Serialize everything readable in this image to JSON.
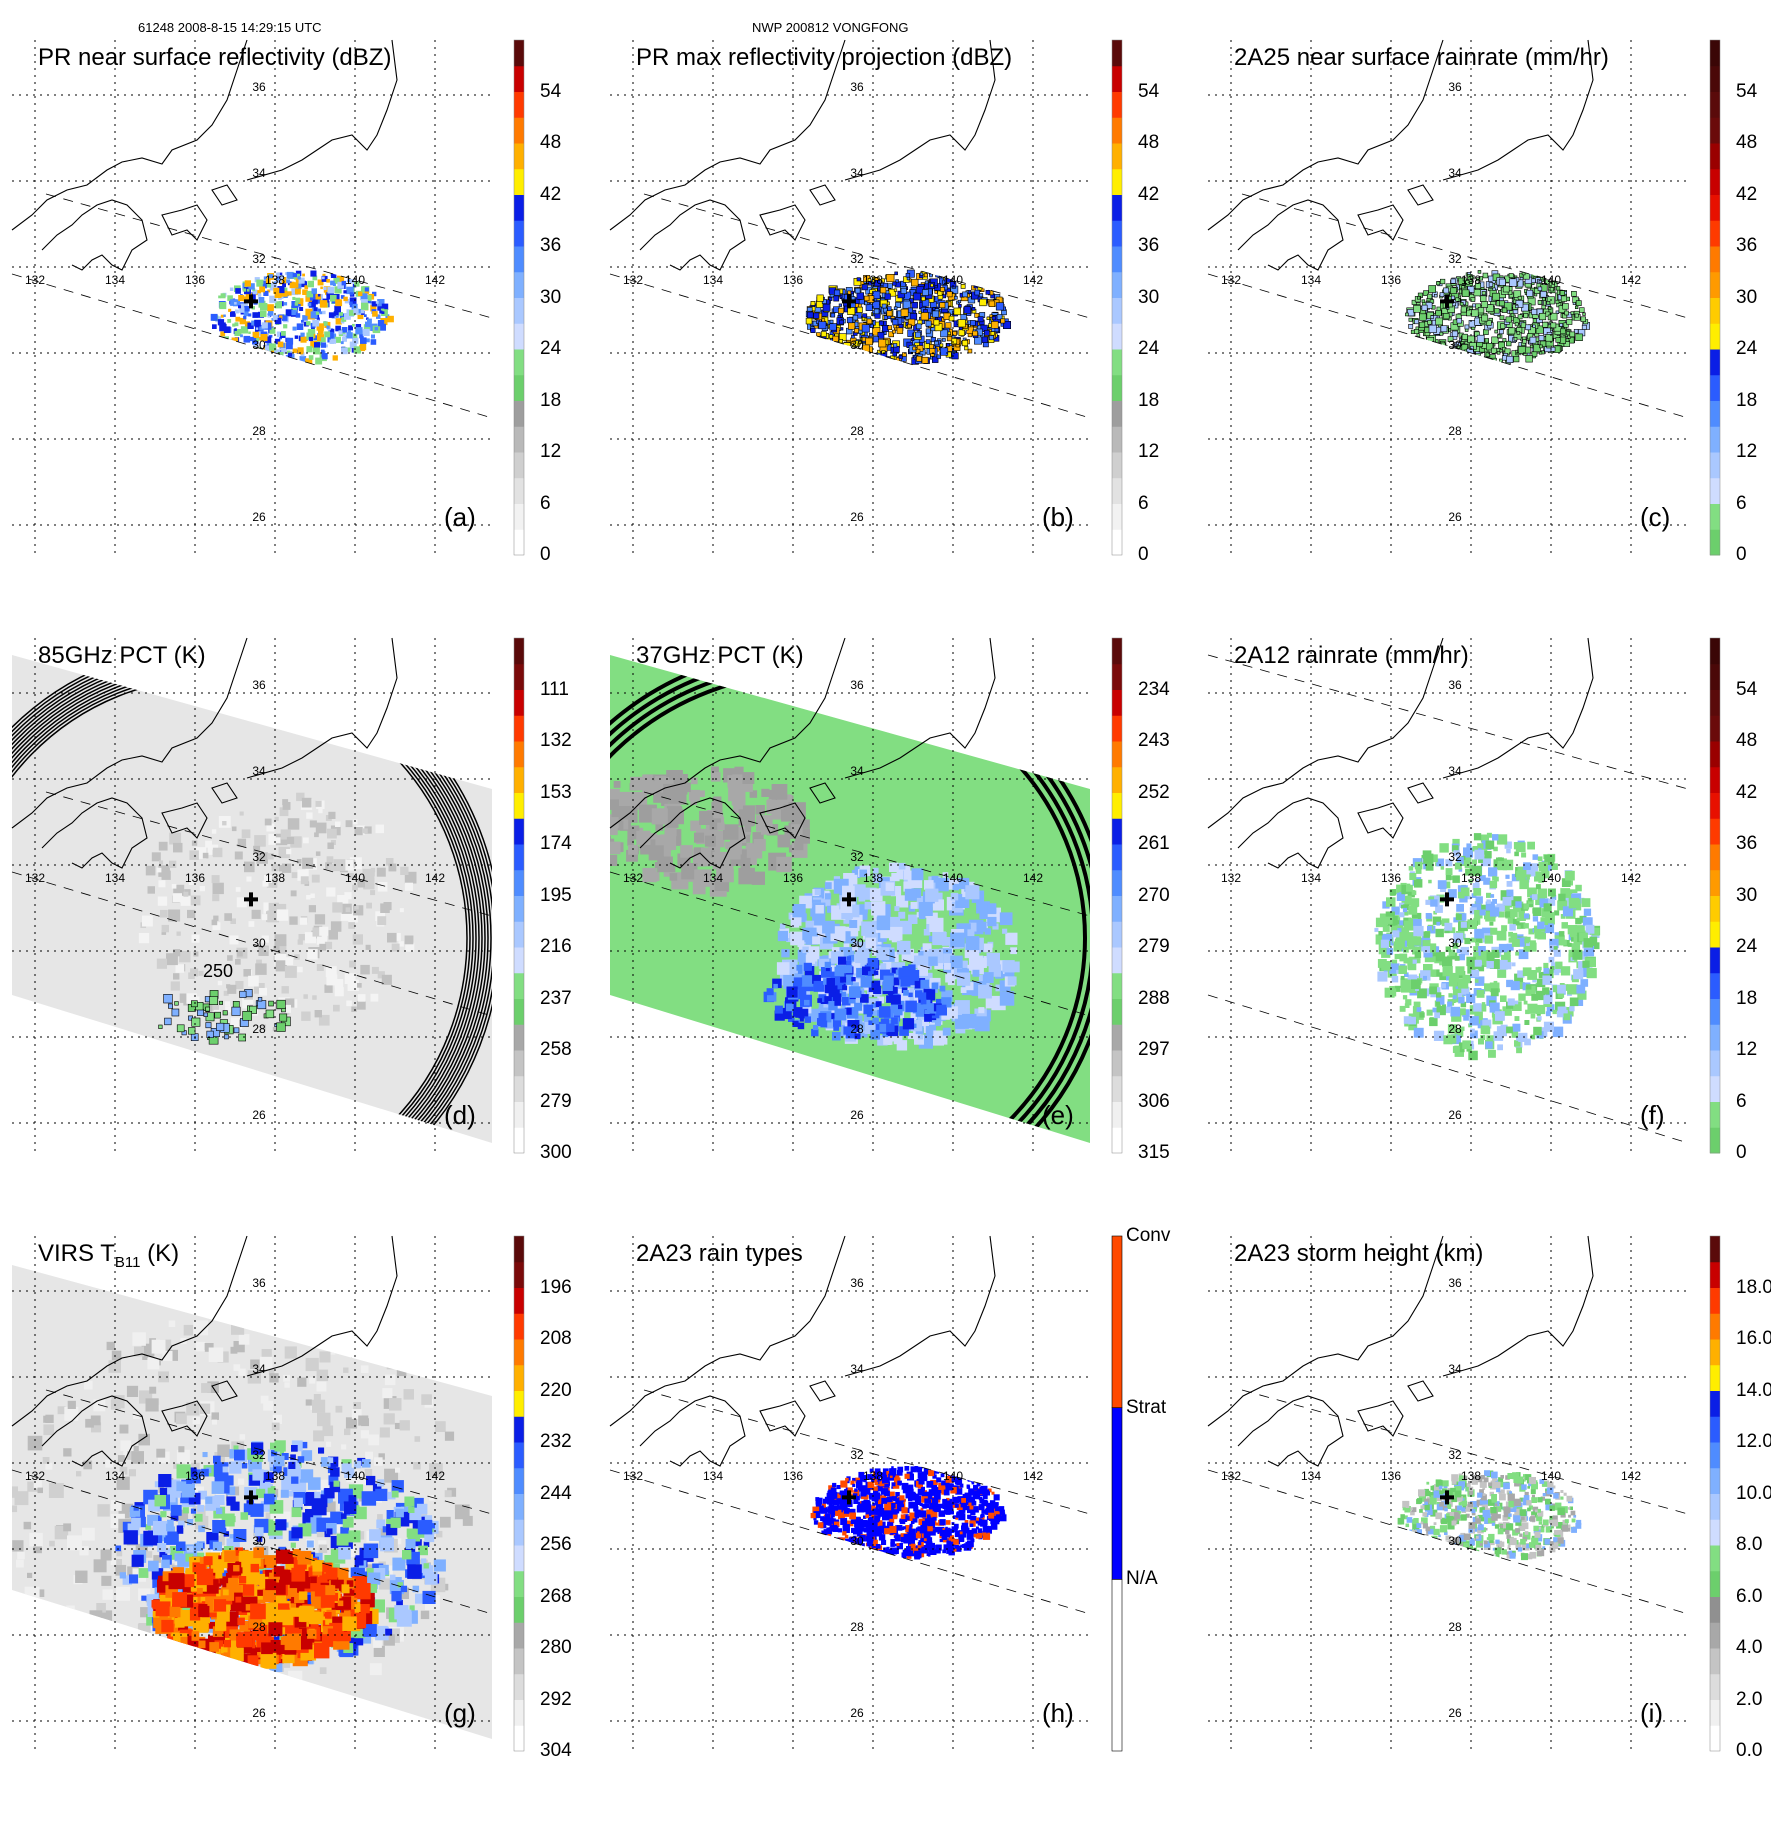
{
  "header": {
    "orbit_time": "61248 2008-8-15 14:29:15 UTC",
    "storm": "NWP 200812 VONGFONG"
  },
  "axes": {
    "lon_labels": [
      "132",
      "134",
      "136",
      "138",
      "140",
      "142"
    ],
    "lat_labels": [
      "36",
      "34",
      "32",
      "30",
      "28",
      "26"
    ]
  },
  "colors": {
    "pr": [
      "#ffffff",
      "#f2f2f2",
      "#e2e2e2",
      "#cfcfcf",
      "#b9b9b9",
      "#9e9e9e",
      "#6ccf6c",
      "#82de82",
      "#cfdcff",
      "#aac8ff",
      "#7fb0ff",
      "#4f8cff",
      "#2b5cff",
      "#0a1ee6",
      "#ffee00",
      "#ffb000",
      "#ff7a00",
      "#ff3a00",
      "#c80000",
      "#5a0a0a"
    ],
    "rain": [
      "#6ccf6c",
      "#82de82",
      "#cfdcff",
      "#aac8ff",
      "#7fb0ff",
      "#4f8cff",
      "#2b5cff",
      "#0a1ee6",
      "#ffee00",
      "#ffcc00",
      "#ff9a00",
      "#ff7a00",
      "#ff3a00",
      "#e81000",
      "#c80000",
      "#9a0000",
      "#6a0a0a",
      "#5a0a0a",
      "#4a0808",
      "#3a0606"
    ],
    "pct85": [
      "#ffffff",
      "#f0f0f0",
      "#dcdcdc",
      "#c4c4c4",
      "#a8a8a8",
      "#6ccf6c",
      "#82de82",
      "#cfdcff",
      "#aac8ff",
      "#7fb0ff",
      "#4f8cff",
      "#2b5cff",
      "#0a1ee6",
      "#ffee00",
      "#ffb000",
      "#ff7a00",
      "#ff3a00",
      "#c80000",
      "#7a0a0a",
      "#5a0a0a"
    ],
    "sh": [
      "#ffffff",
      "#f0f0f0",
      "#dcdcdc",
      "#c4c4c4",
      "#a8a8a8",
      "#909090",
      "#6ccf6c",
      "#82de82",
      "#cfdcff",
      "#aac8ff",
      "#7fb0ff",
      "#4f8cff",
      "#2b5cff",
      "#0a1ee6",
      "#ffee00",
      "#ffb000",
      "#ff7a00",
      "#ff3a00",
      "#c80000",
      "#5a0a0a"
    ],
    "rain_type": [
      "#ffffff",
      "#0000ff",
      "#ff4a00"
    ]
  },
  "panels": [
    {
      "id": "a",
      "title": "PR near surface reflectivity (dBZ)",
      "letter": "(a)",
      "colorbar": {
        "palette": "pr",
        "labels": [
          "0",
          "6",
          "12",
          "18",
          "24",
          "30",
          "36",
          "42",
          "48",
          "54"
        ],
        "steps": 10
      }
    },
    {
      "id": "b",
      "title": "PR max reflectivity projection (dBZ)",
      "letter": "(b)",
      "colorbar": {
        "palette": "pr",
        "labels": [
          "0",
          "6",
          "12",
          "18",
          "24",
          "30",
          "36",
          "42",
          "48",
          "54"
        ],
        "steps": 10
      }
    },
    {
      "id": "c",
      "title": "2A25 near surface rainrate (mm/hr)",
      "letter": "(c)",
      "colorbar": {
        "palette": "rain",
        "labels": [
          "0",
          "6",
          "12",
          "18",
          "24",
          "30",
          "36",
          "42",
          "48",
          "54"
        ],
        "steps": 10
      }
    },
    {
      "id": "d",
      "title": "85GHz PCT (K)",
      "letter": "(d)",
      "contour_label": "250",
      "colorbar": {
        "palette": "pct85",
        "labels": [
          "300",
          "279",
          "258",
          "237",
          "216",
          "195",
          "174",
          "153",
          "132",
          "111"
        ],
        "steps": 10
      }
    },
    {
      "id": "e",
      "title": "37GHz PCT (K)",
      "letter": "(e)",
      "colorbar": {
        "palette": "pct85",
        "labels": [
          "315",
          "306",
          "297",
          "288",
          "279",
          "270",
          "261",
          "252",
          "243",
          "234"
        ],
        "steps": 10
      }
    },
    {
      "id": "f",
      "title": "2A12 rainrate (mm/hr)",
      "letter": "(f)",
      "colorbar": {
        "palette": "rain",
        "labels": [
          "0",
          "6",
          "12",
          "18",
          "24",
          "30",
          "36",
          "42",
          "48",
          "54"
        ],
        "steps": 10
      }
    },
    {
      "id": "g",
      "title": "VIRS T",
      "title_sub": "B11",
      "title_tail": " (K)",
      "letter": "(g)",
      "colorbar": {
        "palette": "pct85",
        "labels": [
          "304",
          "292",
          "280",
          "268",
          "256",
          "244",
          "232",
          "220",
          "208",
          "196"
        ],
        "steps": 10
      }
    },
    {
      "id": "h",
      "title": "2A23 rain types",
      "letter": "(h)",
      "colorbar": {
        "palette": "rain_type",
        "labels": [
          "N/A",
          "Strat",
          "Conv"
        ],
        "steps": 3,
        "categorical": true
      }
    },
    {
      "id": "i",
      "title": "2A23 storm height (km)",
      "letter": "(i)",
      "colorbar": {
        "palette": "sh",
        "labels": [
          "0.0",
          "2.0",
          "4.0",
          "6.0",
          "8.0",
          "10.0",
          "12.0",
          "14.0",
          "16.0",
          "18.0"
        ],
        "steps": 10
      }
    }
  ]
}
